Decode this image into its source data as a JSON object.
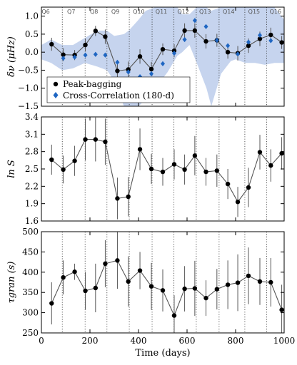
{
  "chart_data": [
    {
      "type": "line",
      "ylabel": "δν (μHz)",
      "xlim": [
        0,
        1000
      ],
      "ylim": [
        -1.5,
        1.25
      ],
      "yticks": [
        -1.5,
        -1.0,
        -0.5,
        0.0,
        0.5,
        1.0
      ],
      "ytick_labels": [
        "−1.5",
        "−1.0",
        "−0.5",
        "0.0",
        "0.5",
        "1.0"
      ],
      "grid": false,
      "legend_position": "lower-left",
      "quarter_boundaries": [
        86,
        180,
        270,
        362,
        456,
        546,
        638,
        732,
        838,
        928
      ],
      "quarter_labels": [
        {
          "label": "Q6",
          "x": 1
        },
        {
          "label": "Q7",
          "x": 106
        },
        {
          "label": "Q8",
          "x": 200
        },
        {
          "label": "Q9",
          "x": 288
        },
        {
          "label": "Q10",
          "x": 377
        },
        {
          "label": "Q11",
          "x": 470
        },
        {
          "label": "Q12",
          "x": 560
        },
        {
          "label": "Q13",
          "x": 650
        },
        {
          "label": "Q14",
          "x": 747
        },
        {
          "label": "Q15",
          "x": 852
        },
        {
          "label": "Q16",
          "x": 940
        }
      ],
      "band": {
        "x": [
          0,
          40,
          86,
          130,
          180,
          230,
          270,
          300,
          340,
          360,
          400,
          430,
          470,
          520,
          560,
          580,
          610,
          640,
          680,
          700,
          740,
          780,
          800,
          840,
          880,
          920,
          960,
          1000
        ],
        "upper": [
          0.2,
          0.35,
          0.2,
          0.2,
          0.4,
          0.6,
          0.6,
          0.45,
          0.5,
          0.6,
          0.9,
          1.15,
          1.25,
          1.25,
          1.25,
          1.05,
          1.05,
          1.25,
          1.25,
          1.15,
          1.25,
          1.25,
          1.25,
          1.25,
          1.25,
          1.25,
          1.25,
          0.9
        ],
        "lower": [
          -0.2,
          -0.3,
          -0.5,
          -0.45,
          -0.3,
          -0.4,
          -0.5,
          -0.8,
          -1.5,
          -1.5,
          -1.5,
          -1.3,
          -1.0,
          -0.55,
          -0.1,
          0.0,
          0.2,
          -0.3,
          -1.0,
          -1.5,
          -0.6,
          -0.25,
          -0.2,
          -0.3,
          -0.3,
          -0.35,
          -0.3,
          -0.3
        ]
      },
      "series": [
        {
          "name": "Peak-bagging",
          "color": "#000000",
          "marker": "circle",
          "connected": true,
          "x": [
            42,
            90,
            137,
            181,
            223,
            263,
            313,
            358,
            406,
            453,
            500,
            547,
            590,
            632,
            678,
            723,
            768,
            809,
            853,
            900,
            945,
            990
          ],
          "y": [
            0.22,
            -0.07,
            -0.08,
            0.2,
            0.59,
            0.43,
            -0.52,
            -0.48,
            -0.12,
            -0.47,
            0.08,
            0.04,
            0.6,
            0.6,
            0.3,
            0.33,
            0.0,
            -0.03,
            0.18,
            0.37,
            0.48,
            0.27
          ],
          "yerr": [
            0.18,
            0.18,
            0.14,
            0.18,
            0.14,
            0.2,
            0.24,
            0.22,
            0.2,
            0.2,
            0.16,
            0.18,
            0.2,
            0.2,
            0.2,
            0.18,
            0.18,
            0.2,
            0.2,
            0.2,
            0.2,
            0.18
          ]
        },
        {
          "name": "Cross-Correlation (180-d)",
          "color": "#1f66c2",
          "marker": "diamond",
          "connected": false,
          "x": [
            90,
            137,
            181,
            223,
            263,
            313,
            358,
            406,
            453,
            500,
            547,
            590,
            632,
            678,
            723,
            768,
            809,
            853,
            900,
            945
          ],
          "y": [
            -0.17,
            -0.14,
            -0.08,
            -0.06,
            -0.08,
            -0.28,
            -0.55,
            -0.68,
            -0.6,
            -0.32,
            -0.03,
            0.35,
            0.88,
            0.71,
            0.33,
            0.18,
            -0.05,
            0.28,
            0.47,
            0.32
          ]
        }
      ]
    },
    {
      "type": "line",
      "ylabel": "ln S",
      "xlim": [
        0,
        1000
      ],
      "ylim": [
        1.6,
        3.4
      ],
      "yticks": [
        1.6,
        1.9,
        2.2,
        2.5,
        2.8,
        3.1,
        3.4
      ],
      "ytick_labels": [
        "1.6",
        "1.9",
        "2.2",
        "2.5",
        "2.8",
        "3.1",
        "3.4"
      ],
      "grid": false,
      "quarter_boundaries": [
        86,
        180,
        270,
        362,
        456,
        546,
        638,
        732,
        838,
        928
      ],
      "series": [
        {
          "name": "",
          "color": "#000000",
          "marker": "circle",
          "connected": true,
          "x": [
            42,
            90,
            137,
            181,
            223,
            263,
            313,
            358,
            406,
            453,
            500,
            547,
            590,
            632,
            678,
            723,
            768,
            809,
            853,
            900,
            945,
            990
          ],
          "y": [
            2.66,
            2.49,
            2.64,
            3.01,
            3.01,
            2.97,
            1.99,
            2.02,
            2.84,
            2.5,
            2.45,
            2.58,
            2.49,
            2.73,
            2.45,
            2.47,
            2.24,
            1.93,
            2.18,
            2.79,
            2.56,
            2.77
          ],
          "yerr": [
            0.26,
            0.24,
            0.26,
            0.36,
            0.38,
            0.4,
            0.36,
            0.34,
            0.36,
            0.26,
            0.24,
            0.26,
            0.26,
            0.34,
            0.24,
            0.28,
            0.26,
            0.26,
            0.34,
            0.3,
            0.28,
            0.28
          ]
        }
      ]
    },
    {
      "type": "line",
      "xlabel": "Time (days)",
      "ylabel": "τgran (s)",
      "xlim": [
        0,
        1000
      ],
      "ylim": [
        250,
        500
      ],
      "yticks": [
        250,
        300,
        350,
        400,
        450,
        500
      ],
      "ytick_labels": [
        "250",
        "300",
        "350",
        "400",
        "450",
        "500"
      ],
      "xticks": [
        0,
        200,
        400,
        600,
        800,
        1000
      ],
      "xtick_labels": [
        "0",
        "200",
        "400",
        "600",
        "800",
        "1000"
      ],
      "grid": false,
      "quarter_boundaries": [
        86,
        180,
        270,
        362,
        456,
        546,
        638,
        732,
        838,
        928
      ],
      "series": [
        {
          "name": "",
          "color": "#000000",
          "marker": "circle",
          "connected": true,
          "x": [
            42,
            90,
            137,
            181,
            223,
            263,
            313,
            358,
            406,
            453,
            500,
            547,
            590,
            632,
            678,
            723,
            768,
            809,
            853,
            900,
            945,
            990
          ],
          "y": [
            323,
            387,
            401,
            354,
            361,
            421,
            429,
            377,
            404,
            365,
            355,
            293,
            359,
            360,
            336,
            358,
            369,
            374,
            391,
            377,
            375,
            307
          ],
          "yerr": [
            52,
            42,
            20,
            46,
            60,
            58,
            70,
            62,
            46,
            58,
            52,
            50,
            56,
            68,
            44,
            50,
            60,
            70,
            70,
            58,
            60,
            62
          ]
        }
      ]
    }
  ],
  "legend": {
    "entries": [
      {
        "label": "Peak-bagging",
        "color": "#000000",
        "marker": "circle"
      },
      {
        "label": "Cross-Correlation (180-d)",
        "color": "#1f66c2",
        "marker": "diamond"
      }
    ]
  },
  "colors": {
    "band": "#c6d4ee",
    "connector": "#555555",
    "boundary": "#333333"
  }
}
